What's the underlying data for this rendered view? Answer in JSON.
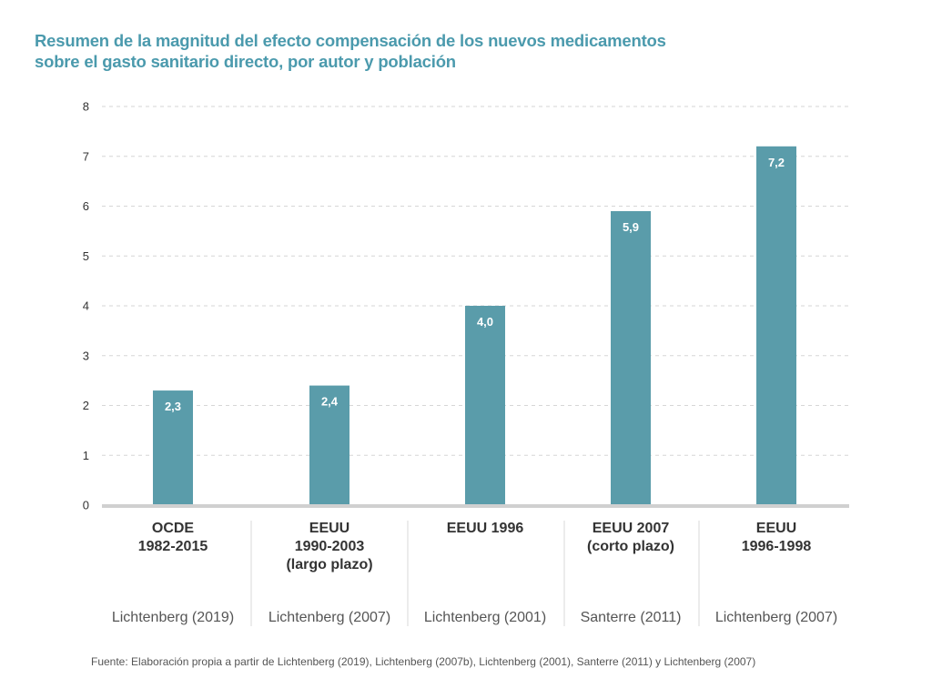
{
  "title": {
    "line1": "Resumen de la magnitud del efecto compensación de los nuevos medicamentos",
    "line2": "sobre el gasto sanitario directo, por autor y población"
  },
  "chart_data": {
    "type": "bar",
    "title": "Resumen de la magnitud del efecto compensación de los nuevos medicamentos sobre el gasto sanitario directo, por autor y población",
    "xlabel": "",
    "ylabel": "",
    "ylim": [
      0,
      8
    ],
    "yticks": [
      "0",
      "1",
      "2",
      "3",
      "4",
      "5",
      "6",
      "7",
      "8"
    ],
    "grid": true,
    "bar_color": "#5a9caa",
    "categories": [
      {
        "lines": [
          "OCDE",
          "1982-2015"
        ],
        "author": "Lichtenberg (2019)"
      },
      {
        "lines": [
          "EEUU",
          "1990-2003",
          "(largo plazo)"
        ],
        "author": "Lichtenberg (2007)"
      },
      {
        "lines": [
          "EEUU 1996"
        ],
        "author": "Lichtenberg (2001)"
      },
      {
        "lines": [
          "EEUU 2007",
          "(corto plazo)"
        ],
        "author": "Santerre (2011)"
      },
      {
        "lines": [
          "EEUU",
          "1996-1998"
        ],
        "author": "Lichtenberg (2007)"
      }
    ],
    "values": [
      2.3,
      2.4,
      4.0,
      5.9,
      7.2
    ],
    "value_labels": [
      "2,3",
      "2,4",
      "4,0",
      "5,9",
      "7,2"
    ]
  },
  "source": "Fuente: Elaboración propia a partir de Lichtenberg (2019), Lichtenberg (2007b), Lichtenberg (2001),  Santerre (2011) y Lichtenberg (2007)"
}
